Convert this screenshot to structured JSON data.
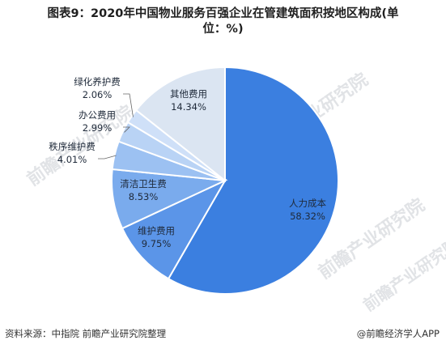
{
  "title_line1": "图表9：2020年中国物业服务百强企业在管建筑面积按地区构成(单",
  "title_line2": "位：%)",
  "watermark_text": "前瞻产业研究院",
  "source": "资料来源：中指院 前瞻产业研究院整理",
  "brand": "@前瞻经济学人APP",
  "chart_data": {
    "type": "pie",
    "unit": "%",
    "slices": [
      {
        "label": "人力成本",
        "value": 58.32,
        "value_label": "58.32%",
        "color": "#3b7fe0"
      },
      {
        "label": "维护费用",
        "value": 9.75,
        "value_label": "9.75%",
        "color": "#5b95e8"
      },
      {
        "label": "清洁卫生费",
        "value": 8.53,
        "value_label": "8.53%",
        "color": "#7aabed"
      },
      {
        "label": "秩序维护费",
        "value": 4.01,
        "value_label": "4.01%",
        "color": "#9cc1f2"
      },
      {
        "label": "办公费用",
        "value": 2.99,
        "value_label": "2.99%",
        "color": "#b9d3f5"
      },
      {
        "label": "绿化养护费",
        "value": 2.06,
        "value_label": "2.06%",
        "color": "#cfe0f8"
      },
      {
        "label": "其他费用",
        "value": 14.34,
        "value_label": "14.34%",
        "color": "#dbe5f2"
      }
    ]
  }
}
